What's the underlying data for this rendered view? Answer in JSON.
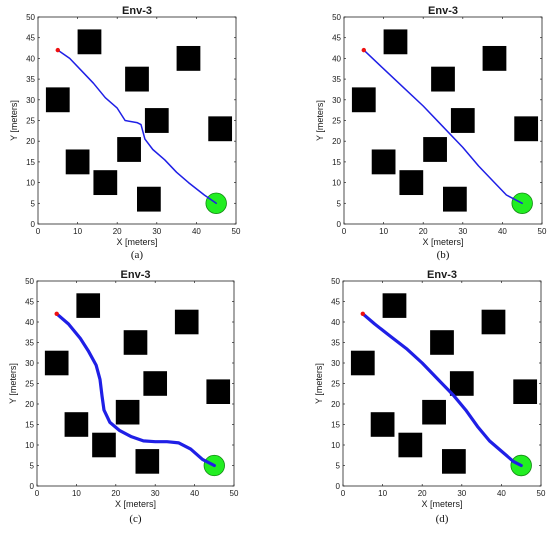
{
  "chart_data": [
    {
      "type": "scatter",
      "panel": "(a)",
      "title": "Env-3",
      "xlabel": "X [meters]",
      "ylabel": "Y [meters]",
      "xlim": [
        0,
        50
      ],
      "ylim": [
        0,
        50
      ],
      "xticks": [
        0,
        10,
        20,
        30,
        40,
        50
      ],
      "yticks": [
        0,
        5,
        10,
        15,
        20,
        25,
        30,
        35,
        40,
        45,
        50
      ],
      "start": {
        "x": 5,
        "y": 42
      },
      "goal": {
        "x": 45,
        "y": 5
      },
      "obstacle_centers": [
        [
          5,
          30
        ],
        [
          13,
          44
        ],
        [
          10,
          15
        ],
        [
          17,
          10
        ],
        [
          25,
          35
        ],
        [
          30,
          25
        ],
        [
          23,
          18
        ],
        [
          28,
          6
        ],
        [
          38,
          40
        ],
        [
          46,
          23
        ]
      ],
      "obstacle_size": 6,
      "path": [
        [
          5,
          42
        ],
        [
          8,
          40
        ],
        [
          11,
          37
        ],
        [
          14,
          34
        ],
        [
          17,
          30.5
        ],
        [
          20,
          28
        ],
        [
          22,
          25
        ],
        [
          25,
          24.5
        ],
        [
          26,
          24
        ],
        [
          27,
          20.5
        ],
        [
          29,
          18
        ],
        [
          32,
          15.5
        ],
        [
          35,
          12.5
        ],
        [
          38,
          10
        ],
        [
          42,
          7
        ],
        [
          45,
          5
        ]
      ],
      "path_width": 1.5
    },
    {
      "type": "scatter",
      "panel": "(b)",
      "title": "Env-3",
      "xlabel": "X [meters]",
      "ylabel": "Y [meters]",
      "xlim": [
        0,
        50
      ],
      "ylim": [
        0,
        50
      ],
      "xticks": [
        0,
        10,
        20,
        30,
        40,
        50
      ],
      "yticks": [
        0,
        5,
        10,
        15,
        20,
        25,
        30,
        35,
        40,
        45,
        50
      ],
      "start": {
        "x": 5,
        "y": 42
      },
      "goal": {
        "x": 45,
        "y": 5
      },
      "obstacle_centers": [
        [
          5,
          30
        ],
        [
          13,
          44
        ],
        [
          10,
          15
        ],
        [
          17,
          10
        ],
        [
          25,
          35
        ],
        [
          30,
          25
        ],
        [
          23,
          18
        ],
        [
          28,
          6
        ],
        [
          38,
          40
        ],
        [
          46,
          23
        ]
      ],
      "obstacle_size": 6,
      "path": [
        [
          5,
          42
        ],
        [
          10,
          37.5
        ],
        [
          15,
          33
        ],
        [
          20,
          28.5
        ],
        [
          25,
          23.5
        ],
        [
          30,
          18.5
        ],
        [
          34,
          14
        ],
        [
          38,
          10
        ],
        [
          41,
          7
        ],
        [
          45,
          5
        ]
      ],
      "path_width": 1.5
    },
    {
      "type": "scatter",
      "panel": "(c)",
      "title": "Env-3",
      "xlabel": "X [meters]",
      "ylabel": "Y [meters]",
      "xlim": [
        0,
        50
      ],
      "ylim": [
        0,
        50
      ],
      "xticks": [
        0,
        10,
        20,
        30,
        40,
        50
      ],
      "yticks": [
        0,
        5,
        10,
        15,
        20,
        25,
        30,
        35,
        40,
        45,
        50
      ],
      "start": {
        "x": 5,
        "y": 42
      },
      "goal": {
        "x": 45,
        "y": 5
      },
      "obstacle_centers": [
        [
          5,
          30
        ],
        [
          13,
          44
        ],
        [
          10,
          15
        ],
        [
          17,
          10
        ],
        [
          25,
          35
        ],
        [
          30,
          25
        ],
        [
          23,
          18
        ],
        [
          28,
          6
        ],
        [
          38,
          40
        ],
        [
          46,
          23
        ]
      ],
      "obstacle_size": 6,
      "path": [
        [
          5,
          42
        ],
        [
          8,
          39.5
        ],
        [
          11,
          36
        ],
        [
          13,
          33
        ],
        [
          15,
          29.5
        ],
        [
          16,
          26
        ],
        [
          16.5,
          22
        ],
        [
          17,
          18.5
        ],
        [
          18.5,
          15.5
        ],
        [
          21,
          13.5
        ],
        [
          24,
          12
        ],
        [
          27,
          11
        ],
        [
          30,
          10.8
        ],
        [
          33,
          10.8
        ],
        [
          36,
          10.5
        ],
        [
          39,
          9
        ],
        [
          42,
          6.5
        ],
        [
          45,
          5
        ]
      ],
      "path_width": 3.2
    },
    {
      "type": "scatter",
      "panel": "(d)",
      "title": "Env-3",
      "xlabel": "X [meters]",
      "ylabel": "Y [meters]",
      "xlim": [
        0,
        50
      ],
      "ylim": [
        0,
        50
      ],
      "xticks": [
        0,
        10,
        20,
        30,
        40,
        50
      ],
      "yticks": [
        0,
        5,
        10,
        15,
        20,
        25,
        30,
        35,
        40,
        45,
        50
      ],
      "start": {
        "x": 5,
        "y": 42
      },
      "goal": {
        "x": 45,
        "y": 5
      },
      "obstacle_centers": [
        [
          5,
          30
        ],
        [
          13,
          44
        ],
        [
          10,
          15
        ],
        [
          17,
          10
        ],
        [
          25,
          35
        ],
        [
          30,
          25
        ],
        [
          23,
          18
        ],
        [
          28,
          6
        ],
        [
          38,
          40
        ],
        [
          46,
          23
        ]
      ],
      "obstacle_size": 6,
      "path": [
        [
          5,
          42
        ],
        [
          8,
          39.5
        ],
        [
          12,
          36.5
        ],
        [
          16,
          33.5
        ],
        [
          20,
          30
        ],
        [
          24,
          26
        ],
        [
          28,
          22
        ],
        [
          31,
          18.5
        ],
        [
          34,
          14.5
        ],
        [
          37,
          11
        ],
        [
          40,
          8.5
        ],
        [
          43,
          6
        ],
        [
          45,
          5
        ]
      ],
      "path_width": 3.2
    }
  ],
  "colors": {
    "path": "#1f1fe6",
    "goal_fill": "#22ee22",
    "goal_stroke": "#118811",
    "start_marker": "#ee1111",
    "obstacle": "#000000",
    "axes": "#222222"
  }
}
